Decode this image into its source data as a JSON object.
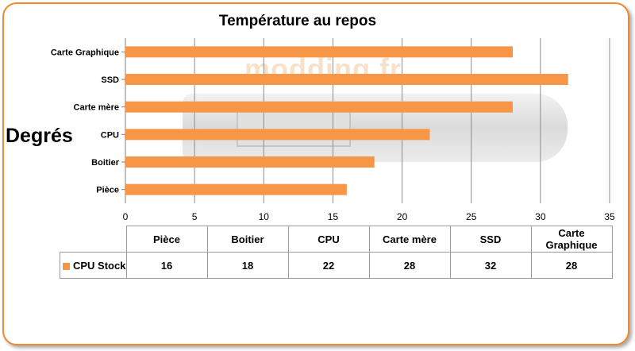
{
  "chart_data": {
    "type": "bar",
    "orientation": "horizontal",
    "title": "Température au repos",
    "ylabel": "Degrés",
    "categories": [
      "Pièce",
      "Boitier",
      "CPU",
      "Carte mère",
      "SSD",
      "Carte Graphique"
    ],
    "series": [
      {
        "name": "CPU Stock",
        "values": [
          16,
          18,
          22,
          28,
          32,
          28
        ],
        "color": "#f79646"
      }
    ],
    "xlim": [
      0,
      35
    ],
    "xticks": [
      0,
      5,
      10,
      15,
      20,
      25,
      30,
      35
    ],
    "grid": true,
    "legend": "data-table"
  },
  "watermark": "modding.fr",
  "table": {
    "header": [
      "Pièce",
      "Boitier",
      "CPU",
      "Carte mère",
      "SSD",
      "Carte Graphique"
    ]
  }
}
